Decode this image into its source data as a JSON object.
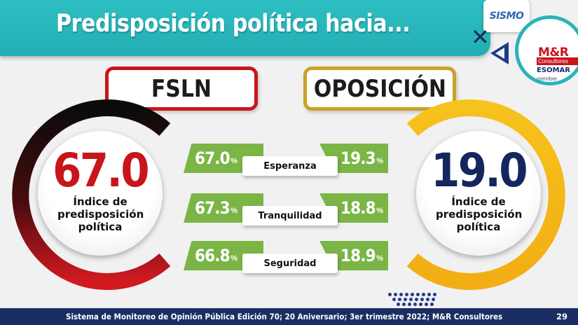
{
  "header": {
    "title": "Predisposición política hacia...",
    "logo_sismo_text": "SISMO",
    "logo_mr_main": "M&R",
    "logo_mr_sub": "Consultores",
    "logo_mr_esomar": "ESOMAR",
    "logo_mr_member": "member"
  },
  "colors": {
    "teal": "#28b4b8",
    "fsln_red": "#c8151b",
    "opposition_gold": "#f4b81c",
    "navy": "#15255e",
    "green": "#7ab545",
    "footer_bg": "#1a2e63"
  },
  "chart_data": {
    "type": "table",
    "parties": [
      {
        "name": "FSLN",
        "index_value": "67.0",
        "index_label": "Índice de predisposición política",
        "values": [
          {
            "value": "67.0",
            "unit": "%"
          },
          {
            "value": "67.3",
            "unit": "%"
          },
          {
            "value": "66.8",
            "unit": "%"
          }
        ]
      },
      {
        "name": "OPOSICIÓN",
        "index_value": "19.0",
        "index_label": "Índice de predisposición política",
        "values": [
          {
            "value": "19.3",
            "unit": "%"
          },
          {
            "value": "18.8",
            "unit": "%"
          },
          {
            "value": "18.9",
            "unit": "%"
          }
        ]
      }
    ],
    "categories": [
      "Esperanza",
      "Tranquilidad",
      "Seguridad"
    ]
  },
  "footer": {
    "text": "Sistema de Monitoreo de Opinión Pública Edición 70; 20 Aniversario; 3er trimestre 2022; M&R Consultores",
    "page_number": "29"
  }
}
